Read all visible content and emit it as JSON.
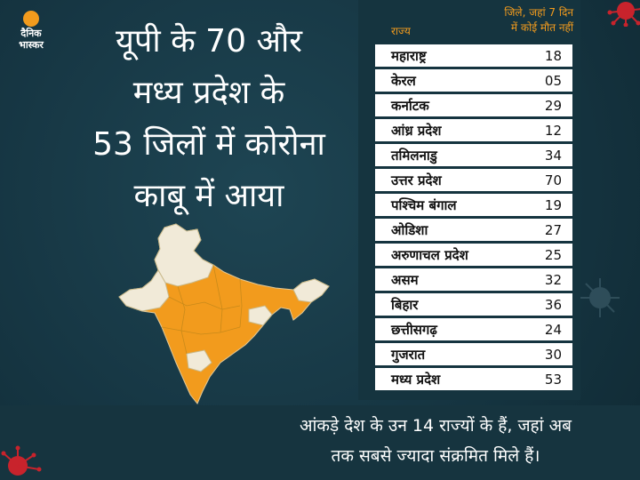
{
  "logo": {
    "line1": "दैनिक",
    "line2": "भास्कर"
  },
  "headline": {
    "line1": "यूपी के 70 और",
    "line2": "मध्य प्रदेश के",
    "line3": "53 जिलों में कोरोना",
    "line4": "काबू में आया"
  },
  "table": {
    "header_state": "राज्य",
    "header_value_line1": "जिले, जहां 7 दिन",
    "header_value_line2": "में कोई मौत नहीं",
    "rows": [
      {
        "name": "महाराष्ट्र",
        "value": "18"
      },
      {
        "name": "केरल",
        "value": "05"
      },
      {
        "name": "कर्नाटक",
        "value": "29"
      },
      {
        "name": "आंध्र प्रदेश",
        "value": "12"
      },
      {
        "name": "तमिलनाडु",
        "value": "34"
      },
      {
        "name": "उत्तर प्रदेश",
        "value": "70"
      },
      {
        "name": "पश्चिम बंगाल",
        "value": "19"
      },
      {
        "name": "ओडिशा",
        "value": "27"
      },
      {
        "name": "अरुणाचल प्रदेश",
        "value": "25"
      },
      {
        "name": "असम",
        "value": "32"
      },
      {
        "name": "बिहार",
        "value": "36"
      },
      {
        "name": "छत्तीसगढ़",
        "value": "24"
      },
      {
        "name": "गुजरात",
        "value": "30"
      },
      {
        "name": "मध्य प्रदेश",
        "value": "53"
      }
    ]
  },
  "footer": {
    "line1": "आंकड़े देश के उन 14 राज्यों के हैं, जहां अब",
    "line2": "तक सबसे ज्यादा संक्रमित मिले हैं।"
  },
  "colors": {
    "accent": "#f29b1d",
    "background": "#16343f",
    "map_light": "#f1ead8",
    "virus": "#c8232c"
  },
  "icons": [
    "india-map-icon",
    "coronavirus-icon"
  ]
}
